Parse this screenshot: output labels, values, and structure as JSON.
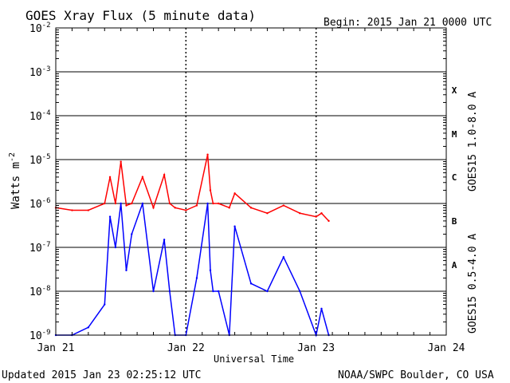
{
  "chart_data": {
    "type": "line",
    "title": "GOES Xray Flux (5 minute data)",
    "begin_label": "Begin:  2015 Jan 21 0000 UTC",
    "xlabel": "Universal Time",
    "ylabel_base": "Watts m",
    "ylabel_exp": "-2",
    "y_scale": "log",
    "ylim": [
      1e-09,
      0.01
    ],
    "xlim": [
      "2015-01-21",
      "2015-01-24"
    ],
    "x_ticks": [
      "Jan 21",
      "Jan 22",
      "Jan 23",
      "Jan 24"
    ],
    "y_ticks": [
      {
        "base": "10",
        "exp": "-2"
      },
      {
        "base": "10",
        "exp": "-3"
      },
      {
        "base": "10",
        "exp": "-4"
      },
      {
        "base": "10",
        "exp": "-5"
      },
      {
        "base": "10",
        "exp": "-6"
      },
      {
        "base": "10",
        "exp": "-7"
      },
      {
        "base": "10",
        "exp": "-8"
      },
      {
        "base": "10",
        "exp": "-9"
      }
    ],
    "flare_classes": [
      "X",
      "M",
      "C",
      "B",
      "A"
    ],
    "grid": true,
    "legend_position": "right, vertical",
    "series": [
      {
        "name": "GOES15 1.0-8.0 A",
        "color": "#ff0000",
        "x": [
          "2015-01-21 00:00",
          "2015-01-21 03:00",
          "2015-01-21 06:00",
          "2015-01-21 09:00",
          "2015-01-21 10:00",
          "2015-01-21 11:00",
          "2015-01-21 12:00",
          "2015-01-21 13:00",
          "2015-01-21 14:00",
          "2015-01-21 16:00",
          "2015-01-21 18:00",
          "2015-01-21 20:00",
          "2015-01-21 21:00",
          "2015-01-21 22:00",
          "2015-01-22 00:00",
          "2015-01-22 02:00",
          "2015-01-22 04:00",
          "2015-01-22 04:30",
          "2015-01-22 05:00",
          "2015-01-22 06:00",
          "2015-01-22 08:00",
          "2015-01-22 09:00",
          "2015-01-22 12:00",
          "2015-01-22 15:00",
          "2015-01-22 18:00",
          "2015-01-22 21:00",
          "2015-01-23 00:00",
          "2015-01-23 01:00",
          "2015-01-23 02:20"
        ],
        "values": [
          8e-07,
          7e-07,
          7e-07,
          1e-06,
          4e-06,
          1e-06,
          9e-06,
          9e-07,
          1e-06,
          4e-06,
          8e-07,
          4.5e-06,
          1e-06,
          8e-07,
          7e-07,
          9e-07,
          1.3e-05,
          2e-06,
          1e-06,
          1e-06,
          8e-07,
          1.7e-06,
          8e-07,
          6e-07,
          9e-07,
          6e-07,
          5e-07,
          6e-07,
          4e-07
        ]
      },
      {
        "name": "GOES15 0.5-4.0 A",
        "color": "#0000ff",
        "x": [
          "2015-01-21 00:00",
          "2015-01-21 03:00",
          "2015-01-21 06:00",
          "2015-01-21 09:00",
          "2015-01-21 10:00",
          "2015-01-21 11:00",
          "2015-01-21 12:00",
          "2015-01-21 13:00",
          "2015-01-21 14:00",
          "2015-01-21 16:00",
          "2015-01-21 18:00",
          "2015-01-21 20:00",
          "2015-01-21 21:00",
          "2015-01-21 22:00",
          "2015-01-22 00:00",
          "2015-01-22 02:00",
          "2015-01-22 04:00",
          "2015-01-22 04:30",
          "2015-01-22 05:00",
          "2015-01-22 06:00",
          "2015-01-22 08:00",
          "2015-01-22 09:00",
          "2015-01-22 12:00",
          "2015-01-22 15:00",
          "2015-01-22 18:00",
          "2015-01-22 21:00",
          "2015-01-23 00:00",
          "2015-01-23 01:00",
          "2015-01-23 02:20"
        ],
        "values": [
          1e-09,
          1e-09,
          1.5e-09,
          5e-09,
          5e-07,
          1e-07,
          1e-06,
          3e-08,
          2e-07,
          1e-06,
          1e-08,
          1.5e-07,
          1e-08,
          1e-09,
          1e-09,
          2e-08,
          1e-06,
          3e-08,
          1e-08,
          1e-08,
          1e-09,
          3e-07,
          1.5e-08,
          1e-08,
          6e-08,
          1e-08,
          1e-09,
          4e-09,
          1e-09
        ]
      }
    ]
  },
  "footer": {
    "updated": "Updated 2015 Jan 23 02:25:12 UTC",
    "credit": "NOAA/SWPC Boulder, CO USA"
  }
}
